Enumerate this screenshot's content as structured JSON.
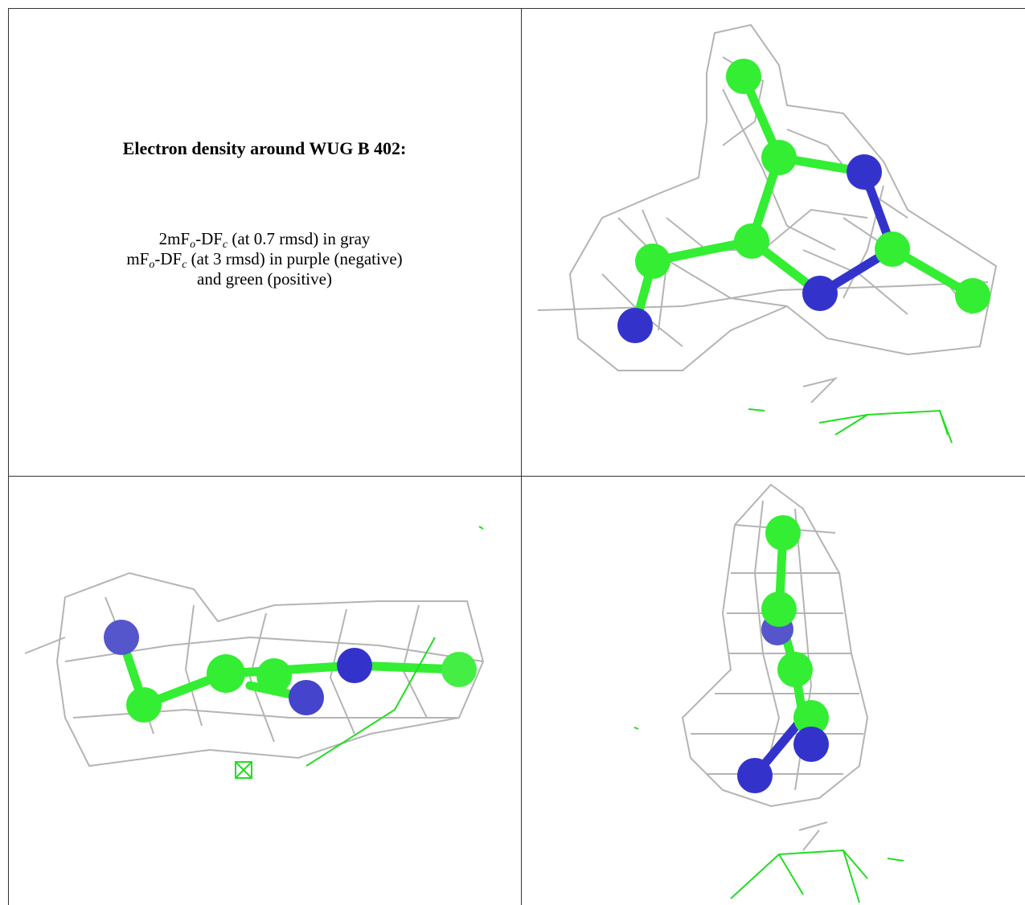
{
  "title": "Electron density around WUG B 402:",
  "legend": [
    [
      "2mF",
      "o",
      "-DF",
      "c",
      " (at 0.7 rmsd) in gray"
    ],
    [
      "mF",
      "o",
      "-DF",
      "c",
      " (at 3 rmsd) in purple (negative)"
    ],
    [
      "and green (positive)"
    ]
  ]
}
